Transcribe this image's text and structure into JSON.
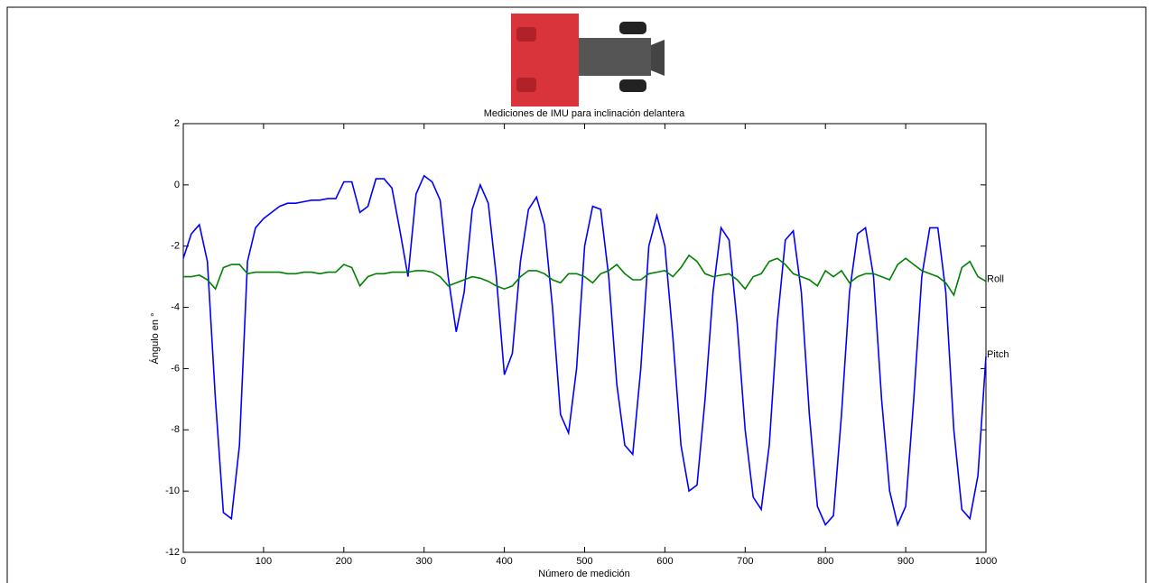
{
  "chart_data": {
    "type": "line",
    "title": "Mediciones de IMU para inclinación delantera",
    "x_label": "Número de medición",
    "y_label": "Ángulo en °",
    "x": [
      0,
      10,
      20,
      30,
      40,
      50,
      60,
      70,
      80,
      90,
      100,
      110,
      120,
      130,
      140,
      150,
      160,
      170,
      180,
      190,
      200,
      210,
      220,
      230,
      240,
      250,
      260,
      270,
      280,
      290,
      300,
      310,
      320,
      330,
      340,
      350,
      360,
      370,
      380,
      390,
      400,
      410,
      420,
      430,
      440,
      450,
      460,
      470,
      480,
      490,
      500,
      510,
      520,
      530,
      540,
      550,
      560,
      570,
      580,
      590,
      600,
      610,
      620,
      630,
      640,
      650,
      660,
      670,
      680,
      690,
      700,
      710,
      720,
      730,
      740,
      750,
      760,
      770,
      780,
      790,
      800,
      810,
      820,
      830,
      840,
      850,
      860,
      870,
      880,
      890,
      900,
      910,
      920,
      930,
      940,
      950,
      960,
      970,
      980,
      990,
      1000
    ],
    "series": [
      {
        "name": "Pitch",
        "color": "#0000ff",
        "values": [
          -2.4,
          -1.6,
          -1.3,
          -2.5,
          -7,
          -10.7,
          -10.9,
          -8.5,
          -2.5,
          -1.4,
          -1.1,
          -0.9,
          -0.7,
          -0.6,
          -0.6,
          -0.55,
          -0.5,
          -0.5,
          -0.45,
          -0.45,
          0.1,
          0.1,
          -0.9,
          -0.7,
          0.2,
          0.2,
          -0.1,
          -1.5,
          -3,
          -0.3,
          0.3,
          0.1,
          -0.5,
          -3,
          -4.8,
          -3.5,
          -0.8,
          0,
          -0.6,
          -3,
          -6.2,
          -5.5,
          -2.5,
          -0.8,
          -0.4,
          -1.3,
          -4,
          -7.5,
          -8.1,
          -6,
          -2,
          -0.7,
          -0.8,
          -3,
          -6.5,
          -8.5,
          -8.8,
          -6,
          -2,
          -1,
          -2,
          -5,
          -8.5,
          -10,
          -9.8,
          -7,
          -3.5,
          -1.4,
          -1.8,
          -4.5,
          -8,
          -10.2,
          -10.6,
          -8.5,
          -4.5,
          -1.8,
          -1.5,
          -3.5,
          -7.5,
          -10.5,
          -11.1,
          -10.8,
          -7.5,
          -3.5,
          -1.6,
          -1.4,
          -3,
          -7,
          -10,
          -11.1,
          -10.5,
          -7,
          -3,
          -1.4,
          -1.4,
          -3.5,
          -8,
          -10.6,
          -10.9,
          -9.5,
          -5.6
        ]
      },
      {
        "name": "Roll",
        "color": "#008000",
        "values": [
          -3,
          -3,
          -2.95,
          -3.1,
          -3.4,
          -2.7,
          -2.6,
          -2.6,
          -2.9,
          -2.85,
          -2.85,
          -2.85,
          -2.85,
          -2.9,
          -2.9,
          -2.85,
          -2.85,
          -2.9,
          -2.85,
          -2.85,
          -2.6,
          -2.7,
          -3.3,
          -3,
          -2.9,
          -2.9,
          -2.85,
          -2.85,
          -2.85,
          -2.8,
          -2.8,
          -2.85,
          -3,
          -3.3,
          -3.2,
          -3.1,
          -3,
          -3.05,
          -3.15,
          -3.3,
          -3.4,
          -3.3,
          -3,
          -2.8,
          -2.8,
          -2.9,
          -3.1,
          -3.2,
          -2.9,
          -2.9,
          -3,
          -3.2,
          -2.9,
          -2.8,
          -2.6,
          -2.9,
          -3.1,
          -3.1,
          -2.9,
          -2.85,
          -2.8,
          -3,
          -2.7,
          -2.3,
          -2.5,
          -2.9,
          -3,
          -2.95,
          -2.9,
          -3.1,
          -3.4,
          -3,
          -2.9,
          -2.5,
          -2.4,
          -2.6,
          -2.9,
          -3,
          -3.1,
          -3.3,
          -2.8,
          -3,
          -2.8,
          -3.2,
          -3,
          -2.9,
          -2.9,
          -3,
          -3.1,
          -2.6,
          -2.4,
          -2.6,
          -2.8,
          -2.9,
          -3,
          -3.2,
          -3.6,
          -2.7,
          -2.5,
          -3,
          -3.15
        ]
      }
    ],
    "xlim": [
      0,
      1000
    ],
    "xticks": [
      0,
      100,
      200,
      300,
      400,
      500,
      600,
      700,
      800,
      900,
      1000
    ],
    "ylim": [
      -12,
      2
    ],
    "yticks": [
      -12,
      -10,
      -8,
      -6,
      -4,
      -2,
      0,
      2
    ],
    "grid": false
  }
}
